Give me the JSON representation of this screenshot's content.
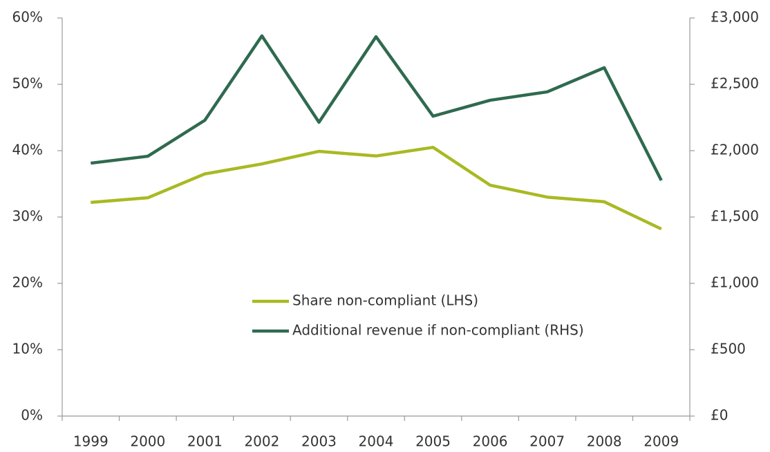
{
  "chart_data": {
    "type": "line",
    "categories": [
      "1999",
      "2000",
      "2001",
      "2002",
      "2003",
      "2004",
      "2005",
      "2006",
      "2007",
      "2008",
      "2009"
    ],
    "series": [
      {
        "name": "Share non-compliant (LHS)",
        "color": "#a9b923",
        "values": [
          32.2,
          32.9,
          36.5,
          38.0,
          39.9,
          39.2,
          40.5,
          34.8,
          33.0,
          32.3,
          28.2
        ]
      },
      {
        "name": "Additional revenue if non-compliant (RHS)",
        "color": "#2f6a4f",
        "axis": "y2",
        "values": [
          1906,
          1958,
          2229,
          2865,
          2214,
          2859,
          2260,
          2380,
          2443,
          2625,
          1776
        ]
      }
    ],
    "ylim": [
      0,
      60
    ],
    "yticks": [
      {
        "value": 0,
        "label": "0%"
      },
      {
        "value": 10,
        "label": "10%"
      },
      {
        "value": 20,
        "label": "20%"
      },
      {
        "value": 30,
        "label": "30%"
      },
      {
        "value": 40,
        "label": "40%"
      },
      {
        "value": 50,
        "label": "50%"
      },
      {
        "value": 60,
        "label": "60%"
      }
    ],
    "y2lim": [
      0,
      3000
    ],
    "y2ticks": [
      {
        "value": 0,
        "label": "£0"
      },
      {
        "value": 500,
        "label": "£500"
      },
      {
        "value": 1000,
        "label": "£1,000"
      },
      {
        "value": 1500,
        "label": "£1,500"
      },
      {
        "value": 2000,
        "label": "£2,000"
      },
      {
        "value": 2500,
        "label": "£2,500"
      },
      {
        "value": 3000,
        "label": "£3,000"
      }
    ],
    "grid": false
  }
}
